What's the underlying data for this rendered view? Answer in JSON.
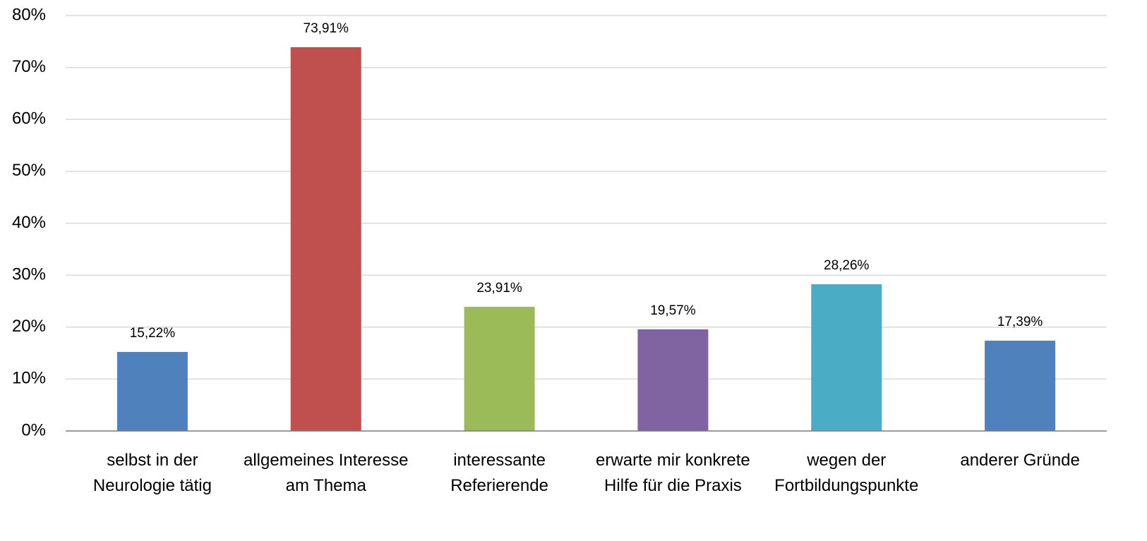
{
  "chart_data": {
    "type": "bar",
    "categories": [
      "selbst in der Neurologie tätig",
      "allgemeines Interesse am Thema",
      "interessante Referierende",
      "erwarte mir konkrete Hilfe für die Praxis",
      "wegen der Fortbildungspunkte",
      "anderer Gründe"
    ],
    "values": [
      15.22,
      73.91,
      23.91,
      19.57,
      28.26,
      17.39
    ],
    "value_labels": [
      "15,22%",
      "73,91%",
      "23,91%",
      "19,57%",
      "28,26%",
      "17,39%"
    ],
    "colors": [
      "#4f81bd",
      "#c0504d",
      "#9bbb59",
      "#8064a2",
      "#4bacc6",
      "#4f81bd"
    ],
    "ylim": [
      0,
      80
    ],
    "yticks": [
      {
        "value": 0,
        "label": "0%"
      },
      {
        "value": 10,
        "label": "10%"
      },
      {
        "value": 20,
        "label": "20%"
      },
      {
        "value": 30,
        "label": "30%"
      },
      {
        "value": 40,
        "label": "40%"
      },
      {
        "value": 50,
        "label": "50%"
      },
      {
        "value": 60,
        "label": "60%"
      },
      {
        "value": 70,
        "label": "70%"
      },
      {
        "value": 80,
        "label": "80%"
      }
    ],
    "grid": true
  }
}
